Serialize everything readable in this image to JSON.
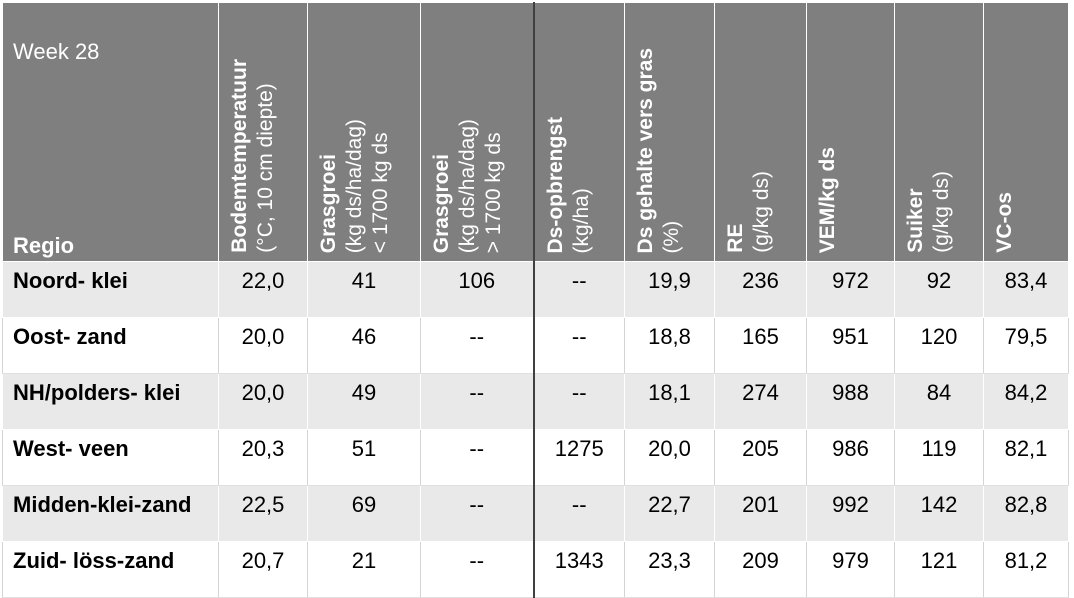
{
  "table": {
    "week": "Week 28",
    "row_header": "Regio",
    "columns": [
      {
        "bold": "Bodemtemperatuur",
        "lines": [
          "(°C, 10 cm diepte)"
        ]
      },
      {
        "bold": "Grasgroei",
        "lines": [
          "(kg ds/ha/dag)",
          "< 1700 kg ds"
        ]
      },
      {
        "bold": "Grasgroei",
        "lines": [
          "(kg ds/ha/dag)",
          "> 1700 kg ds"
        ]
      },
      {
        "bold": "Ds-opbrengst",
        "lines": [
          "(kg/ha)"
        ]
      },
      {
        "bold": "Ds gehalte vers gras",
        "lines": [
          "(%)"
        ]
      },
      {
        "bold": "RE",
        "lines": [
          "(g/kg ds)"
        ]
      },
      {
        "bold": "VEM/kg ds",
        "lines": []
      },
      {
        "bold": "Suiker",
        "lines": [
          "(g/kg ds)"
        ]
      },
      {
        "bold": "VC-os",
        "lines": []
      }
    ],
    "rows": [
      {
        "region": "Noord- klei",
        "values": [
          "22,0",
          "41",
          "106",
          "--",
          "19,9",
          "236",
          "972",
          "92",
          "83,4"
        ]
      },
      {
        "region": "Oost- zand",
        "values": [
          "20,0",
          "46",
          "--",
          "--",
          "18,8",
          "165",
          "951",
          "120",
          "79,5"
        ]
      },
      {
        "region": "NH/polders- klei",
        "values": [
          "20,0",
          "49",
          "--",
          "--",
          "18,1",
          "274",
          "988",
          "84",
          "84,2"
        ]
      },
      {
        "region": "West- veen",
        "values": [
          "20,3",
          "51",
          "--",
          "1275",
          "20,0",
          "205",
          "986",
          "119",
          "82,1"
        ]
      },
      {
        "region": "Midden-klei-zand",
        "values": [
          "22,5",
          "69",
          "--",
          "--",
          "22,7",
          "201",
          "992",
          "142",
          "82,8"
        ]
      },
      {
        "region": "Zuid- löss-zand",
        "values": [
          "20,7",
          "21",
          "--",
          "1343",
          "23,3",
          "209",
          "979",
          "121",
          "81,2"
        ]
      }
    ]
  }
}
